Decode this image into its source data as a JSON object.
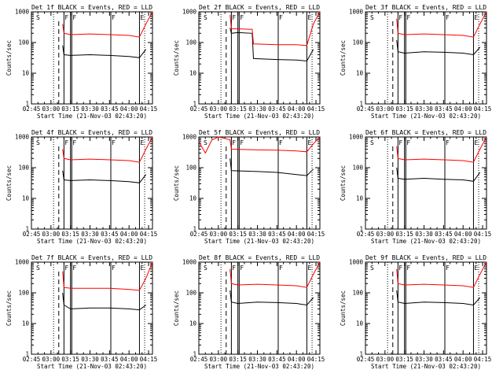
{
  "figure": {
    "x_label": "Start Time (21-Nov-03 02:43:20)",
    "y_label": "Counts/sec",
    "x_ticks": [
      "02:45",
      "03:00",
      "03:15",
      "03:30",
      "03:45",
      "04:00",
      "04:15"
    ],
    "y_ticks": [
      "1",
      "10",
      "100",
      "1000"
    ],
    "colors": {
      "events": "#000000",
      "lld": "#ff0000",
      "axes": "#000000"
    },
    "marker_lines": {
      "dotted": [
        "03:02",
        "04:12"
      ],
      "dashed": [
        "03:06"
      ]
    }
  },
  "chart_data": [
    {
      "type": "line",
      "title": "Det 1f BLACK = Events, RED = LLD",
      "xlim": [
        "02:45",
        "04:18"
      ],
      "ylim": [
        1,
        1000
      ],
      "y_scale": "log",
      "segment_labels": [
        "S",
        "F",
        "F",
        "F",
        "E"
      ],
      "segment_label_x": [
        "02:48",
        "03:10",
        "03:16",
        "03:46",
        "04:08"
      ],
      "segment_lines_x": [
        "03:10",
        "03:15",
        "03:16",
        "03:46",
        "04:08"
      ],
      "x": [
        "03:09",
        "03:10",
        "03:15",
        "03:30",
        "03:45",
        "04:00",
        "04:08",
        "04:13",
        "04:18"
      ],
      "series": [
        {
          "name": "Events",
          "values": [
            80,
            40,
            38,
            40,
            38,
            35,
            32,
            60,
            null
          ]
        },
        {
          "name": "LLD",
          "values": [
            400,
            200,
            180,
            190,
            180,
            170,
            150,
            400,
            1000
          ]
        }
      ]
    },
    {
      "type": "line",
      "title": "Det 2f BLACK = Events, RED = LLD",
      "xlim": [
        "02:45",
        "04:18"
      ],
      "ylim": [
        1,
        1000
      ],
      "y_scale": "log",
      "segment_labels": [
        "S",
        "F",
        "F",
        "F",
        "E"
      ],
      "segment_label_x": [
        "02:48",
        "03:10",
        "03:16",
        "03:46",
        "04:08"
      ],
      "segment_lines_x": [
        "03:10",
        "03:15",
        "03:16",
        "03:46",
        "04:08"
      ],
      "x": [
        "03:09",
        "03:10",
        "03:15",
        "03:26",
        "03:27",
        "03:45",
        "04:00",
        "04:08",
        "04:13",
        "04:18"
      ],
      "series": [
        {
          "name": "Events",
          "values": [
            300,
            200,
            210,
            200,
            30,
            28,
            27,
            25,
            60,
            null
          ]
        },
        {
          "name": "LLD",
          "values": [
            800,
            280,
            280,
            270,
            90,
            85,
            85,
            80,
            400,
            1000
          ]
        }
      ]
    },
    {
      "type": "line",
      "title": "Det 3f BLACK = Events, RED = LLD",
      "xlim": [
        "02:45",
        "04:18"
      ],
      "ylim": [
        1,
        1000
      ],
      "y_scale": "log",
      "segment_labels": [
        "S",
        "F",
        "F",
        "F",
        "E"
      ],
      "segment_label_x": [
        "02:48",
        "03:10",
        "03:16",
        "03:46",
        "04:08"
      ],
      "segment_lines_x": [
        "03:10",
        "03:15",
        "03:16",
        "03:46",
        "04:08"
      ],
      "x": [
        "03:09",
        "03:10",
        "03:15",
        "03:30",
        "03:45",
        "04:00",
        "04:08",
        "04:13",
        "04:18"
      ],
      "series": [
        {
          "name": "Events",
          "values": [
            120,
            50,
            45,
            50,
            48,
            45,
            40,
            70,
            null
          ]
        },
        {
          "name": "LLD",
          "values": [
            600,
            200,
            180,
            190,
            180,
            170,
            150,
            400,
            1000
          ]
        }
      ]
    },
    {
      "type": "line",
      "title": "Det 4f BLACK = Events, RED = LLD",
      "xlim": [
        "02:45",
        "04:18"
      ],
      "ylim": [
        1,
        1000
      ],
      "y_scale": "log",
      "segment_labels": [
        "S",
        "F",
        "F",
        "F",
        "E"
      ],
      "segment_label_x": [
        "02:48",
        "03:10",
        "03:16",
        "03:46",
        "04:08"
      ],
      "segment_lines_x": [
        "03:10",
        "03:15",
        "03:16",
        "03:46",
        "04:08"
      ],
      "x": [
        "03:09",
        "03:10",
        "03:15",
        "03:30",
        "03:45",
        "04:00",
        "04:08",
        "04:13",
        "04:18"
      ],
      "series": [
        {
          "name": "Events",
          "values": [
            80,
            40,
            38,
            40,
            38,
            35,
            32,
            60,
            null
          ]
        },
        {
          "name": "LLD",
          "values": [
            400,
            200,
            180,
            190,
            180,
            170,
            150,
            400,
            1000
          ]
        }
      ]
    },
    {
      "type": "line",
      "title": "Det 5f BLACK = Events, RED = LLD",
      "xlim": [
        "02:45",
        "04:18"
      ],
      "ylim": [
        1,
        1000
      ],
      "y_scale": "log",
      "segment_labels": [
        "S",
        "F",
        "F",
        "F",
        "E"
      ],
      "segment_label_x": [
        "02:48",
        "03:10",
        "03:16",
        "03:46",
        "04:08"
      ],
      "segment_lines_x": [
        "03:10",
        "03:15",
        "03:16",
        "03:46",
        "04:08"
      ],
      "x": [
        "02:45",
        "02:50",
        "02:55",
        "03:00",
        "03:05",
        "03:09",
        "03:10",
        "03:30",
        "03:45",
        "04:00",
        "04:08",
        "04:13",
        "04:18"
      ],
      "series": [
        {
          "name": "Events",
          "values": [
            null,
            null,
            null,
            null,
            null,
            200,
            80,
            75,
            70,
            60,
            55,
            90,
            null
          ]
        },
        {
          "name": "LLD",
          "values": [
            700,
            300,
            800,
            1000,
            900,
            800,
            400,
            380,
            370,
            350,
            330,
            600,
            1000
          ]
        }
      ]
    },
    {
      "type": "line",
      "title": "Det 6f BLACK = Events, RED = LLD",
      "xlim": [
        "02:45",
        "04:18"
      ],
      "ylim": [
        1,
        1000
      ],
      "y_scale": "log",
      "segment_labels": [
        "S",
        "F",
        "F",
        "F",
        "E"
      ],
      "segment_label_x": [
        "02:48",
        "03:10",
        "03:16",
        "03:46",
        "04:08"
      ],
      "segment_lines_x": [
        "03:10",
        "03:15",
        "03:16",
        "03:46",
        "04:08"
      ],
      "x": [
        "03:09",
        "03:10",
        "03:15",
        "03:30",
        "03:45",
        "04:00",
        "04:08",
        "04:13",
        "04:18"
      ],
      "series": [
        {
          "name": "Events",
          "values": [
            100,
            45,
            42,
            45,
            42,
            40,
            36,
            70,
            null
          ]
        },
        {
          "name": "LLD",
          "values": [
            500,
            200,
            180,
            190,
            180,
            170,
            150,
            400,
            1000
          ]
        }
      ]
    },
    {
      "type": "line",
      "title": "Det 7f BLACK = Events, RED = LLD",
      "xlim": [
        "02:45",
        "04:18"
      ],
      "ylim": [
        1,
        1000
      ],
      "y_scale": "log",
      "segment_labels": [
        "S",
        "F",
        "F",
        "F",
        "E"
      ],
      "segment_label_x": [
        "02:48",
        "03:10",
        "03:16",
        "03:46",
        "04:08"
      ],
      "segment_lines_x": [
        "03:10",
        "03:15",
        "03:16",
        "03:46",
        "04:08"
      ],
      "x": [
        "03:09",
        "03:10",
        "03:15",
        "03:30",
        "03:45",
        "04:00",
        "04:08",
        "04:13",
        "04:18"
      ],
      "series": [
        {
          "name": "Events",
          "values": [
            100,
            40,
            30,
            32,
            32,
            30,
            28,
            40,
            null
          ]
        },
        {
          "name": "LLD",
          "values": [
            500,
            150,
            140,
            140,
            140,
            130,
            120,
            300,
            1000
          ]
        }
      ]
    },
    {
      "type": "line",
      "title": "Det 8f BLACK = Events, RED = LLD",
      "xlim": [
        "02:45",
        "04:18"
      ],
      "ylim": [
        1,
        1000
      ],
      "y_scale": "log",
      "segment_labels": [
        "S",
        "F",
        "F",
        "F",
        "E"
      ],
      "segment_label_x": [
        "02:48",
        "03:10",
        "03:16",
        "03:46",
        "04:08"
      ],
      "segment_lines_x": [
        "03:10",
        "03:15",
        "03:16",
        "03:46",
        "04:08"
      ],
      "x": [
        "03:09",
        "03:10",
        "03:15",
        "03:30",
        "03:45",
        "04:00",
        "04:08",
        "04:13",
        "04:18"
      ],
      "series": [
        {
          "name": "Events",
          "values": [
            120,
            50,
            45,
            50,
            48,
            45,
            40,
            70,
            null
          ]
        },
        {
          "name": "LLD",
          "values": [
            600,
            200,
            180,
            190,
            180,
            170,
            150,
            400,
            1000
          ]
        }
      ]
    },
    {
      "type": "line",
      "title": "Det 9f BLACK = Events, RED = LLD",
      "xlim": [
        "02:45",
        "04:18"
      ],
      "ylim": [
        1,
        1000
      ],
      "y_scale": "log",
      "segment_labels": [
        "S",
        "F",
        "F",
        "F",
        "E"
      ],
      "segment_label_x": [
        "02:48",
        "03:10",
        "03:16",
        "03:46",
        "04:08"
      ],
      "segment_lines_x": [
        "03:10",
        "03:15",
        "03:16",
        "03:46",
        "04:08"
      ],
      "x": [
        "03:09",
        "03:10",
        "03:15",
        "03:30",
        "03:45",
        "04:00",
        "04:08",
        "04:13",
        "04:18"
      ],
      "series": [
        {
          "name": "Events",
          "values": [
            120,
            50,
            45,
            50,
            48,
            45,
            40,
            70,
            null
          ]
        },
        {
          "name": "LLD",
          "values": [
            600,
            200,
            180,
            190,
            180,
            170,
            150,
            400,
            1000
          ]
        }
      ]
    }
  ]
}
